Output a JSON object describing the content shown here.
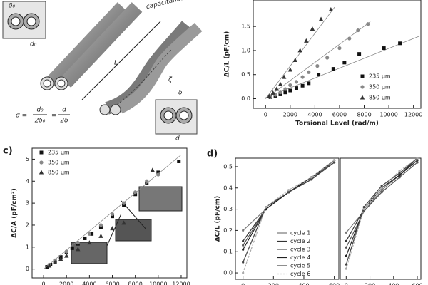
{
  "diagram": {
    "labels": {
      "delta0": "δ₀",
      "d0": "d₀",
      "length": "L",
      "zeta": "ζ",
      "delta": "δ",
      "d": "d",
      "capacitance": "capacitance ↑"
    },
    "formula": [
      "σ =",
      "d₀",
      "2δ₀",
      "=",
      "d",
      "2δ"
    ]
  },
  "chart_data": [
    {
      "type": "scatter",
      "xlabel": "Torsional Level (rad/m)",
      "ylabel": "ΔC/L (pF/cm)",
      "xlim": [
        -1000,
        12600
      ],
      "ylim": [
        -0.2,
        2.05
      ],
      "xticks": [
        0,
        2000,
        4000,
        6000,
        8000,
        10000,
        12000
      ],
      "yticks": [
        {
          "value": 0,
          "label": "0.0"
        },
        {
          "value": 0.5,
          "label": "0.5"
        },
        {
          "value": 1,
          "label": "1.0"
        },
        {
          "value": 1.5,
          "label": "1.5"
        }
      ],
      "series": [
        {
          "name": "235 μm",
          "color": "#111",
          "marker": "square",
          "x": [
            400,
            800,
            1200,
            1600,
            2000,
            2500,
            3000,
            3500,
            4300,
            5500,
            6400,
            7600,
            9600,
            10900
          ],
          "values": [
            0.03,
            0.06,
            0.09,
            0.13,
            0.17,
            0.22,
            0.27,
            0.32,
            0.5,
            0.62,
            0.75,
            0.93,
            1.05,
            1.15
          ],
          "fit": {
            "x": [
              0,
              12500
            ],
            "y": [
              0.02,
              1.3
            ]
          }
        },
        {
          "name": "350 μm",
          "color": "#888",
          "marker": "circle",
          "x": [
            400,
            800,
            1200,
            1600,
            2000,
            2500,
            3000,
            3500,
            4200,
            5000,
            6000,
            6800,
            7500,
            8300
          ],
          "values": [
            0.03,
            0.08,
            0.13,
            0.2,
            0.28,
            0.35,
            0.45,
            0.55,
            0.68,
            0.85,
            1.05,
            1.25,
            1.42,
            1.55
          ],
          "fit": {
            "x": [
              0,
              8500
            ],
            "y": [
              0,
              1.6
            ]
          }
        },
        {
          "name": "850 μm",
          "color": "#333",
          "marker": "triangle",
          "x": [
            300,
            600,
            900,
            1200,
            1500,
            2000,
            2400,
            2800,
            3300,
            3800,
            4500,
            5300
          ],
          "values": [
            0.05,
            0.12,
            0.2,
            0.3,
            0.45,
            0.6,
            0.8,
            1.0,
            1.2,
            1.45,
            1.65,
            1.85
          ],
          "fit": {
            "x": [
              0,
              5600
            ],
            "y": [
              0,
              1.9
            ]
          }
        }
      ]
    },
    {
      "type": "scatter",
      "panel_label": "c)",
      "ylabel": "ΔC/A (pF/cm²)",
      "xlim": [
        -1000,
        12500
      ],
      "ylim": [
        -0.4,
        5.5
      ],
      "xticks": [
        0,
        2000,
        4000,
        6000,
        8000,
        10000,
        12000
      ],
      "yticks": [
        0,
        1,
        2,
        3,
        4,
        5
      ],
      "series": [
        {
          "name": "235 μm",
          "color": "#111",
          "marker": "square",
          "x": [
            300,
            600,
            1000,
            1500,
            2000,
            2500,
            3000,
            3600,
            4200,
            5000,
            6000,
            7000,
            8000,
            9000,
            10000,
            11800
          ],
          "values": [
            0.1,
            0.2,
            0.35,
            0.55,
            0.75,
            0.95,
            1.15,
            1.4,
            1.6,
            1.9,
            2.4,
            2.9,
            3.4,
            3.9,
            4.4,
            4.9
          ]
        },
        {
          "name": "350 μm",
          "color": "#888",
          "marker": "circle",
          "x": [
            500,
            1000,
            2000,
            3000,
            4000,
            5000,
            6000,
            7000,
            8000,
            9000,
            10000
          ],
          "values": [
            0.2,
            0.4,
            0.8,
            1.2,
            1.6,
            2.0,
            2.5,
            3.0,
            3.5,
            4.0,
            4.3
          ]
        },
        {
          "name": "850 μm",
          "color": "#333",
          "marker": "triangle",
          "x": [
            500,
            1000,
            1500,
            2000,
            3000,
            4000,
            5000,
            6000,
            7000,
            9500
          ],
          "values": [
            0.15,
            0.3,
            0.45,
            0.6,
            0.9,
            1.2,
            1.5,
            1.85,
            2.1,
            4.5
          ],
          "fit": {
            "x": [
              0,
              12000
            ],
            "y": [
              0,
              5.2
            ]
          }
        }
      ]
    },
    {
      "type": "line",
      "panel_label": "d)",
      "ylabel": "ΔC/L (pF/cm)",
      "xlim": [
        -50,
        630
      ],
      "ylim": [
        -0.03,
        0.54
      ],
      "x": [
        0,
        150,
        300,
        450,
        600
      ],
      "xticks": [
        0,
        200,
        400,
        600
      ],
      "yticks": [
        {
          "value": 0,
          "label": "0.0"
        },
        {
          "value": 0.1,
          "label": "0.1"
        },
        {
          "value": 0.2,
          "label": "0.2"
        },
        {
          "value": 0.3,
          "label": "0.3"
        },
        {
          "value": 0.4,
          "label": "0.4"
        },
        {
          "value": 0.5,
          "label": "0.5"
        }
      ],
      "series": [
        {
          "name": "cycle 1",
          "color": "#777",
          "values": [
            0.2,
            0.3,
            0.38,
            0.45,
            0.53
          ]
        },
        {
          "name": "cycle 2",
          "color": "#333",
          "values": [
            0.15,
            0.3,
            0.38,
            0.44,
            0.53
          ]
        },
        {
          "name": "cycle 3",
          "color": "#555",
          "values": [
            0.13,
            0.3,
            0.38,
            0.45,
            0.52
          ]
        },
        {
          "name": "cycle 4",
          "color": "#222",
          "values": [
            0.11,
            0.3,
            0.38,
            0.45,
            0.53
          ]
        },
        {
          "name": "cycle 5",
          "color": "#444",
          "values": [
            0.05,
            0.31,
            0.38,
            0.44,
            0.52
          ]
        },
        {
          "name": "cycle 6",
          "color": "#aaa",
          "values": [
            0.0,
            0.31,
            0.39,
            0.45,
            0.53
          ]
        }
      ]
    },
    {
      "type": "line",
      "xlim": [
        -50,
        630
      ],
      "ylim": [
        -0.03,
        0.54
      ],
      "x": [
        0,
        150,
        300,
        450,
        600
      ],
      "xticks": [
        0,
        200,
        400,
        600
      ],
      "series": [
        {
          "color": "#777",
          "values": [
            0.19,
            0.29,
            0.39,
            0.46,
            0.53
          ]
        },
        {
          "color": "#333",
          "values": [
            0.15,
            0.3,
            0.4,
            0.46,
            0.53
          ]
        },
        {
          "color": "#555",
          "values": [
            0.12,
            0.29,
            0.38,
            0.45,
            0.52
          ]
        },
        {
          "color": "#222",
          "values": [
            0.08,
            0.3,
            0.4,
            0.46,
            0.54
          ]
        },
        {
          "color": "#444",
          "values": [
            0.04,
            0.31,
            0.41,
            0.47,
            0.54
          ]
        },
        {
          "color": "#aaa",
          "values": [
            0.02,
            0.3,
            0.4,
            0.48,
            0.54
          ]
        }
      ]
    }
  ]
}
